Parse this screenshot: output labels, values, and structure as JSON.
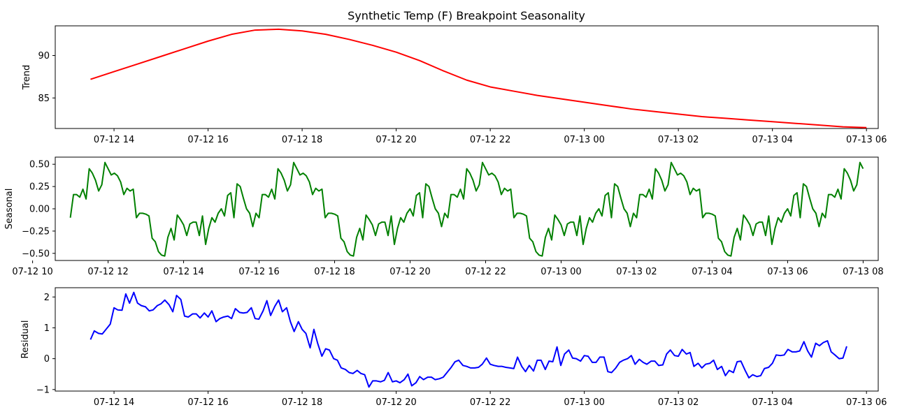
{
  "chart_data": {
    "type": "line",
    "title": "Synthetic Temp (F) Breakpoint Seasonality",
    "grid": false,
    "panels": [
      {
        "id": "trend",
        "ylabel": "Trend",
        "color": "#ff0000",
        "x_unit": "hours since 07-12 00:00",
        "xlim": [
          12.75,
          30.25
        ],
        "ylim": [
          81.4,
          93.5
        ],
        "xticks": [
          14,
          16,
          18,
          20,
          22,
          24,
          26,
          28,
          30
        ],
        "xtick_labels": [
          "07-12 14",
          "07-12 16",
          "07-12 18",
          "07-12 20",
          "07-12 22",
          "07-13 00",
          "07-13 02",
          "07-13 04",
          "07-13 06"
        ],
        "yticks": [
          85,
          90
        ],
        "ytick_labels": [
          "85",
          "90"
        ],
        "points": [
          [
            13.5,
            87.2
          ],
          [
            14.0,
            88.1
          ],
          [
            14.5,
            89.0
          ],
          [
            15.0,
            89.9
          ],
          [
            15.5,
            90.8
          ],
          [
            16.0,
            91.7
          ],
          [
            16.5,
            92.5
          ],
          [
            17.0,
            93.0
          ],
          [
            17.5,
            93.1
          ],
          [
            18.0,
            92.9
          ],
          [
            18.5,
            92.5
          ],
          [
            19.0,
            91.9
          ],
          [
            19.5,
            91.2
          ],
          [
            20.0,
            90.4
          ],
          [
            20.5,
            89.4
          ],
          [
            21.0,
            88.2
          ],
          [
            21.5,
            87.1
          ],
          [
            22.0,
            86.3
          ],
          [
            22.5,
            85.8
          ],
          [
            23.0,
            85.3
          ],
          [
            23.5,
            84.9
          ],
          [
            24.0,
            84.5
          ],
          [
            24.5,
            84.1
          ],
          [
            25.0,
            83.7
          ],
          [
            25.5,
            83.4
          ],
          [
            26.0,
            83.1
          ],
          [
            26.5,
            82.8
          ],
          [
            27.0,
            82.6
          ],
          [
            27.5,
            82.4
          ],
          [
            28.0,
            82.2
          ],
          [
            28.5,
            82.0
          ],
          [
            29.0,
            81.8
          ],
          [
            29.5,
            81.6
          ],
          [
            30.0,
            81.5
          ]
        ]
      },
      {
        "id": "seasonal",
        "ylabel": "Seasonal",
        "color": "#008000",
        "x_unit": "hours since 07-12 00:00",
        "xlim": [
          10.6,
          32.4
        ],
        "ylim": [
          -0.58,
          0.58
        ],
        "xticks": [
          10,
          12,
          14,
          16,
          18,
          20,
          22,
          24,
          26,
          28,
          30,
          32
        ],
        "xtick_labels": [
          "07-12 10",
          "07-12 12",
          "07-12 14",
          "07-12 16",
          "07-12 18",
          "07-12 20",
          "07-12 22",
          "07-13 00",
          "07-13 02",
          "07-13 04",
          "07-13 06",
          "07-13 08"
        ],
        "yticks": [
          -0.5,
          -0.25,
          0.0,
          0.25,
          0.5
        ],
        "ytick_labels": [
          "−0.50",
          "−0.25",
          "0.00",
          "0.25",
          "0.50"
        ],
        "period_hours": 5,
        "start_hour": 11,
        "end_hour": 32,
        "step_hours": 0.08333,
        "pattern": [
          -0.1,
          0.16,
          0.16,
          0.13,
          0.22,
          0.11,
          0.45,
          0.4,
          0.32,
          0.2,
          0.27,
          0.52,
          0.45,
          0.38,
          0.4,
          0.37,
          0.3,
          0.16,
          0.23,
          0.2,
          0.22,
          -0.1,
          -0.05,
          -0.05,
          -0.06,
          -0.08,
          -0.33,
          -0.37,
          -0.48,
          -0.52,
          -0.53,
          -0.32,
          -0.22,
          -0.35,
          -0.07,
          -0.12,
          -0.18,
          -0.3,
          -0.17,
          -0.15,
          -0.15,
          -0.3,
          -0.08,
          -0.4,
          -0.22,
          -0.1,
          -0.15,
          -0.05,
          0.0,
          -0.08,
          0.15,
          0.18,
          -0.1,
          0.28,
          0.25,
          0.12,
          0.0,
          -0.05,
          -0.2,
          -0.05
        ]
      },
      {
        "id": "residual",
        "ylabel": "Residual",
        "color": "#0000ff",
        "x_unit": "hours since 07-12 00:00",
        "xlim": [
          12.75,
          30.25
        ],
        "ylim": [
          -1.05,
          2.3
        ],
        "xticks": [
          14,
          16,
          18,
          20,
          22,
          24,
          26,
          28,
          30
        ],
        "xtick_labels": [
          "07-12 14",
          "07-12 16",
          "07-12 18",
          "07-12 20",
          "07-12 22",
          "07-13 00",
          "07-13 02",
          "07-13 04",
          "07-13 06"
        ],
        "yticks": [
          -1,
          0,
          1,
          2
        ],
        "ytick_labels": [
          "−1",
          "0",
          "1",
          "2"
        ],
        "points": [
          [
            13.5,
            0.62
          ],
          [
            13.58,
            0.9
          ],
          [
            13.67,
            0.82
          ],
          [
            13.75,
            0.8
          ],
          [
            13.83,
            0.95
          ],
          [
            13.92,
            1.12
          ],
          [
            14.0,
            1.65
          ],
          [
            14.08,
            1.58
          ],
          [
            14.17,
            1.57
          ],
          [
            14.25,
            2.1
          ],
          [
            14.33,
            1.8
          ],
          [
            14.42,
            2.15
          ],
          [
            14.5,
            1.8
          ],
          [
            14.58,
            1.72
          ],
          [
            14.67,
            1.68
          ],
          [
            14.75,
            1.55
          ],
          [
            14.83,
            1.58
          ],
          [
            14.92,
            1.72
          ],
          [
            15.0,
            1.78
          ],
          [
            15.08,
            1.9
          ],
          [
            15.17,
            1.75
          ],
          [
            15.25,
            1.52
          ],
          [
            15.33,
            2.05
          ],
          [
            15.42,
            1.92
          ],
          [
            15.5,
            1.38
          ],
          [
            15.58,
            1.35
          ],
          [
            15.67,
            1.45
          ],
          [
            15.75,
            1.45
          ],
          [
            15.83,
            1.32
          ],
          [
            15.92,
            1.48
          ],
          [
            16.0,
            1.35
          ],
          [
            16.08,
            1.55
          ],
          [
            16.17,
            1.2
          ],
          [
            16.25,
            1.3
          ],
          [
            16.33,
            1.35
          ],
          [
            16.42,
            1.38
          ],
          [
            16.5,
            1.3
          ],
          [
            16.58,
            1.62
          ],
          [
            16.67,
            1.5
          ],
          [
            16.75,
            1.48
          ],
          [
            16.83,
            1.5
          ],
          [
            16.92,
            1.65
          ],
          [
            17.0,
            1.3
          ],
          [
            17.08,
            1.28
          ],
          [
            17.17,
            1.55
          ],
          [
            17.25,
            1.88
          ],
          [
            17.33,
            1.4
          ],
          [
            17.42,
            1.7
          ],
          [
            17.5,
            1.9
          ],
          [
            17.58,
            1.52
          ],
          [
            17.67,
            1.65
          ],
          [
            17.75,
            1.2
          ],
          [
            17.83,
            0.88
          ],
          [
            17.92,
            1.2
          ],
          [
            18.0,
            0.95
          ],
          [
            18.08,
            0.82
          ],
          [
            18.17,
            0.35
          ],
          [
            18.25,
            0.95
          ],
          [
            18.33,
            0.5
          ],
          [
            18.42,
            0.08
          ],
          [
            18.5,
            0.32
          ],
          [
            18.58,
            0.28
          ],
          [
            18.67,
            0.0
          ],
          [
            18.75,
            -0.05
          ],
          [
            18.83,
            -0.3
          ],
          [
            18.92,
            -0.35
          ],
          [
            19.0,
            -0.45
          ],
          [
            19.08,
            -0.48
          ],
          [
            19.17,
            -0.38
          ],
          [
            19.25,
            -0.48
          ],
          [
            19.33,
            -0.52
          ],
          [
            19.42,
            -0.92
          ],
          [
            19.5,
            -0.72
          ],
          [
            19.58,
            -0.72
          ],
          [
            19.67,
            -0.75
          ],
          [
            19.75,
            -0.7
          ],
          [
            19.83,
            -0.45
          ],
          [
            19.92,
            -0.75
          ],
          [
            20.0,
            -0.72
          ],
          [
            20.08,
            -0.78
          ],
          [
            20.17,
            -0.68
          ],
          [
            20.25,
            -0.5
          ],
          [
            20.33,
            -0.88
          ],
          [
            20.42,
            -0.78
          ],
          [
            20.5,
            -0.58
          ],
          [
            20.58,
            -0.68
          ],
          [
            20.67,
            -0.6
          ],
          [
            20.75,
            -0.6
          ],
          [
            20.83,
            -0.68
          ],
          [
            20.92,
            -0.65
          ],
          [
            21.0,
            -0.6
          ],
          [
            21.08,
            -0.45
          ],
          [
            21.17,
            -0.28
          ],
          [
            21.25,
            -0.1
          ],
          [
            21.33,
            -0.05
          ],
          [
            21.42,
            -0.22
          ],
          [
            21.5,
            -0.25
          ],
          [
            21.58,
            -0.3
          ],
          [
            21.67,
            -0.3
          ],
          [
            21.75,
            -0.28
          ],
          [
            21.83,
            -0.18
          ],
          [
            21.92,
            0.02
          ],
          [
            22.0,
            -0.18
          ],
          [
            22.08,
            -0.22
          ],
          [
            22.17,
            -0.25
          ],
          [
            22.25,
            -0.25
          ],
          [
            22.33,
            -0.28
          ],
          [
            22.42,
            -0.3
          ],
          [
            22.5,
            -0.32
          ],
          [
            22.58,
            0.05
          ],
          [
            22.67,
            -0.25
          ],
          [
            22.75,
            -0.42
          ],
          [
            22.83,
            -0.22
          ],
          [
            22.92,
            -0.4
          ],
          [
            23.0,
            -0.05
          ],
          [
            23.08,
            -0.05
          ],
          [
            23.17,
            -0.35
          ],
          [
            23.25,
            -0.08
          ],
          [
            23.33,
            -0.1
          ],
          [
            23.42,
            0.38
          ],
          [
            23.5,
            -0.22
          ],
          [
            23.58,
            0.15
          ],
          [
            23.67,
            0.28
          ],
          [
            23.75,
            0.02
          ],
          [
            23.83,
            0.0
          ],
          [
            23.92,
            -0.08
          ],
          [
            24.0,
            0.1
          ],
          [
            24.08,
            0.08
          ],
          [
            24.17,
            -0.12
          ],
          [
            24.25,
            -0.12
          ],
          [
            24.33,
            0.05
          ],
          [
            24.42,
            0.05
          ],
          [
            24.5,
            -0.42
          ],
          [
            24.58,
            -0.45
          ],
          [
            24.67,
            -0.3
          ],
          [
            24.75,
            -0.12
          ],
          [
            24.83,
            -0.05
          ],
          [
            24.92,
            0.0
          ],
          [
            25.0,
            0.1
          ],
          [
            25.08,
            -0.18
          ],
          [
            25.17,
            -0.02
          ],
          [
            25.25,
            -0.12
          ],
          [
            25.33,
            -0.18
          ],
          [
            25.42,
            -0.08
          ],
          [
            25.5,
            -0.08
          ],
          [
            25.58,
            -0.22
          ],
          [
            25.67,
            -0.2
          ],
          [
            25.75,
            0.15
          ],
          [
            25.83,
            0.28
          ],
          [
            25.92,
            0.1
          ],
          [
            26.0,
            0.08
          ],
          [
            26.08,
            0.3
          ],
          [
            26.17,
            0.15
          ],
          [
            26.25,
            0.2
          ],
          [
            26.33,
            -0.25
          ],
          [
            26.42,
            -0.15
          ],
          [
            26.5,
            -0.3
          ],
          [
            26.58,
            -0.18
          ],
          [
            26.67,
            -0.15
          ],
          [
            26.75,
            -0.05
          ],
          [
            26.83,
            -0.35
          ],
          [
            26.92,
            -0.25
          ],
          [
            27.0,
            -0.55
          ],
          [
            27.08,
            -0.38
          ],
          [
            27.17,
            -0.45
          ],
          [
            27.25,
            -0.1
          ],
          [
            27.33,
            -0.08
          ],
          [
            27.42,
            -0.38
          ],
          [
            27.5,
            -0.62
          ],
          [
            27.58,
            -0.52
          ],
          [
            27.67,
            -0.58
          ],
          [
            27.75,
            -0.55
          ],
          [
            27.83,
            -0.32
          ],
          [
            27.92,
            -0.28
          ],
          [
            28.0,
            -0.15
          ],
          [
            28.08,
            0.12
          ],
          [
            28.17,
            0.1
          ],
          [
            28.25,
            0.12
          ],
          [
            28.33,
            0.3
          ],
          [
            28.42,
            0.22
          ],
          [
            28.5,
            0.22
          ],
          [
            28.58,
            0.25
          ],
          [
            28.67,
            0.55
          ],
          [
            28.75,
            0.25
          ],
          [
            28.83,
            0.05
          ],
          [
            28.92,
            0.5
          ],
          [
            29.0,
            0.42
          ],
          [
            29.08,
            0.52
          ],
          [
            29.17,
            0.58
          ],
          [
            29.25,
            0.22
          ],
          [
            29.33,
            0.12
          ],
          [
            29.42,
            0.0
          ],
          [
            29.5,
            0.02
          ],
          [
            29.58,
            0.4
          ]
        ]
      }
    ]
  }
}
